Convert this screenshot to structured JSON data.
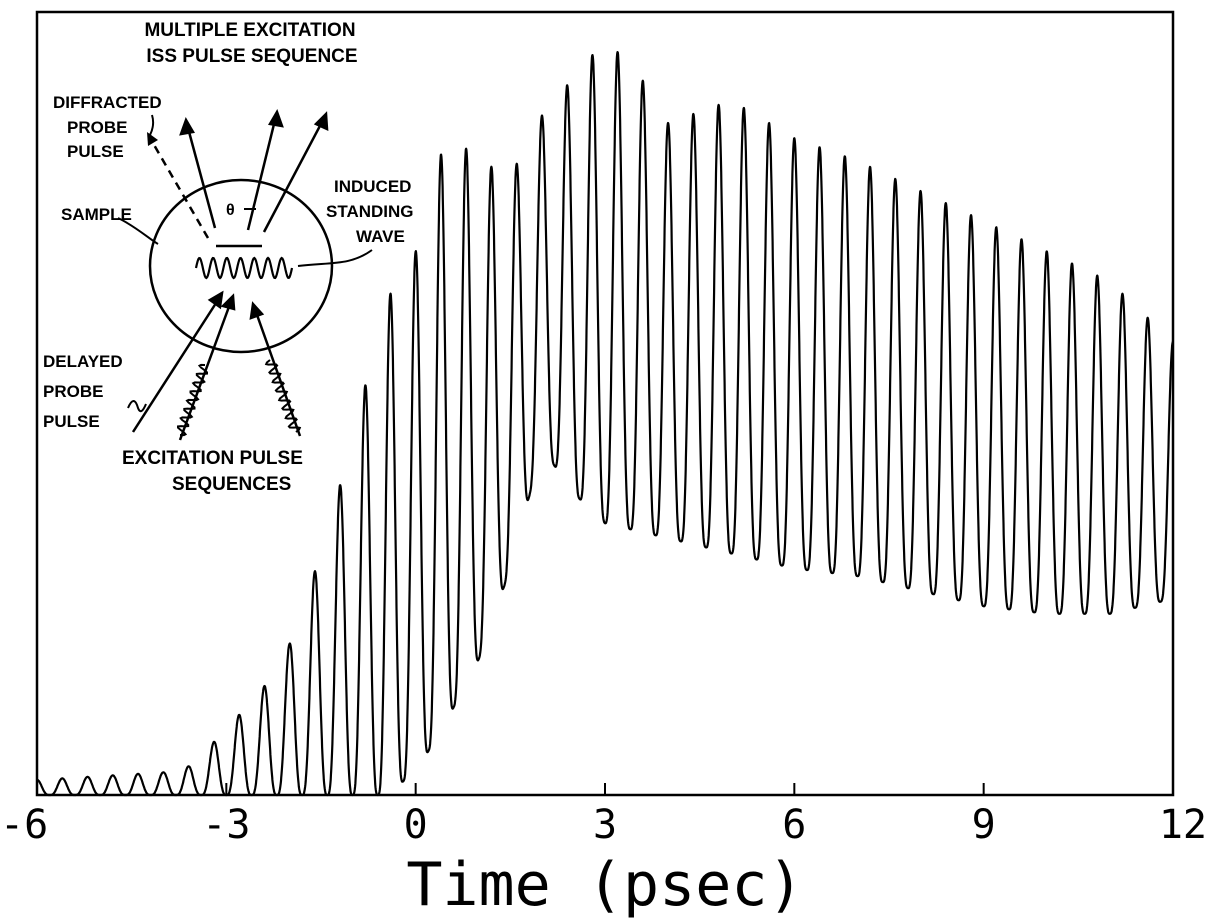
{
  "chart_data": {
    "type": "line",
    "title": "",
    "xlabel": "Time (psec)",
    "ylabel": "",
    "xlim": [
      -6,
      12
    ],
    "ylim": [
      0,
      1.0
    ],
    "x_ticks": [
      -6,
      -3,
      0,
      3,
      6,
      9,
      12
    ],
    "x_tick_labels": [
      "-6",
      "-3",
      "0",
      "3",
      "6",
      "9",
      "12"
    ],
    "grid": false,
    "legend": "none",
    "line_color": "#000000",
    "series": [
      {
        "description_points": {
          "x": [
            -6.0,
            -4.0,
            -3.5,
            -3.0,
            -2.5,
            -2.0,
            -1.5,
            -1.0,
            -0.5,
            0.0,
            0.5,
            1.0,
            1.5,
            2.0,
            2.5,
            3.0,
            3.5,
            4.0,
            5.0,
            6.0,
            7.0,
            8.0,
            9.0,
            10.0,
            11.0,
            12.0
          ],
          "y_envelope_max": [
            0.02,
            0.03,
            0.04,
            0.09,
            0.13,
            0.2,
            0.32,
            0.47,
            0.65,
            0.72,
            0.88,
            0.84,
            0.82,
            0.9,
            0.95,
            1.0,
            0.96,
            0.89,
            0.92,
            0.87,
            0.84,
            0.8,
            0.76,
            0.72,
            0.68,
            0.6
          ],
          "y_envelope_min": [
            0.0,
            0.0,
            0.0,
            0.0,
            0.0,
            0.0,
            0.0,
            0.0,
            0.0,
            0.03,
            0.1,
            0.18,
            0.3,
            0.46,
            0.4,
            0.36,
            0.35,
            0.34,
            0.32,
            0.3,
            0.29,
            0.27,
            0.25,
            0.24,
            0.24,
            0.26
          ]
        },
        "oscillation_period_psec": 0.4
      }
    ]
  },
  "inset": {
    "title_line1": "MULTIPLE EXCITATION",
    "title_line2": "ISS PULSE SEQUENCE",
    "diffracted_line1": "DIFFRACTED",
    "diffracted_line2": "PROBE",
    "diffracted_line3": "PULSE",
    "sample": "SAMPLE",
    "theta": "θ",
    "induced_line1": "INDUCED",
    "induced_line2": "STANDING",
    "induced_line3": "WAVE",
    "delayed_line1": "DELAYED",
    "delayed_line2": "PROBE",
    "delayed_line3": "PULSE",
    "excitation_line1": "EXCITATION PULSE",
    "excitation_line2": "SEQUENCES"
  }
}
